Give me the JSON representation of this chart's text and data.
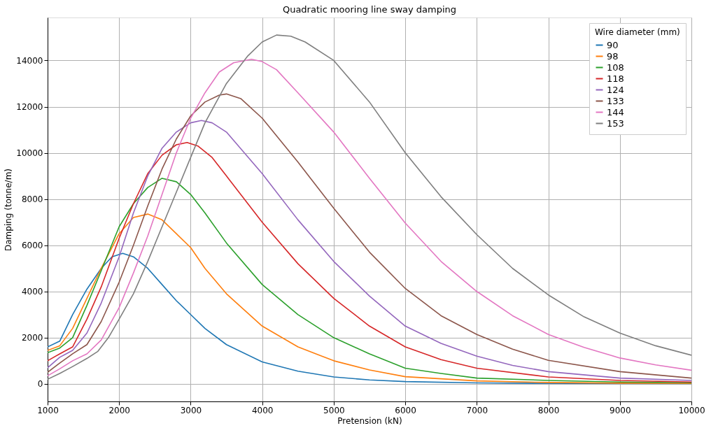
{
  "chart_data": {
    "type": "line",
    "title": "Quadratic mooring line sway damping",
    "xlabel": "Pretension (kN)",
    "ylabel": "Damping (tonne/m)",
    "legend_title": "Wire diameter (mm)",
    "legend": "top right",
    "grid": true,
    "marker": "none",
    "line_style": "solid",
    "xlim": [
      1000,
      10000
    ],
    "xticks": [
      1000,
      2000,
      3000,
      4000,
      5000,
      6000,
      7000,
      8000,
      9000,
      10000
    ],
    "ylim": [
      -760,
      15860
    ],
    "yticks": [
      0,
      2000,
      4000,
      6000,
      8000,
      10000,
      12000,
      14000
    ],
    "series": [
      {
        "name": "90",
        "color": "#1f77b4",
        "x": [
          1000,
          1170,
          1350,
          1550,
          1750,
          1900,
          2050,
          2200,
          2400,
          2600,
          2800,
          3000,
          3200,
          3500,
          4000,
          4500,
          5000,
          5500,
          6000,
          7000,
          8000,
          10000
        ],
        "values": [
          1600,
          1850,
          3000,
          4100,
          5000,
          5500,
          5650,
          5500,
          5000,
          4300,
          3600,
          3000,
          2400,
          1700,
          950,
          550,
          300,
          170,
          100,
          40,
          20,
          10
        ]
      },
      {
        "name": "98",
        "color": "#ff7f0e",
        "x": [
          1000,
          1170,
          1350,
          1550,
          1750,
          2000,
          2200,
          2400,
          2600,
          2800,
          3000,
          3200,
          3500,
          4000,
          4500,
          5000,
          5500,
          6000,
          7000,
          8000,
          9000,
          10000
        ],
        "values": [
          1450,
          1650,
          2400,
          3700,
          5000,
          6500,
          7200,
          7350,
          7100,
          6500,
          5900,
          5000,
          3900,
          2500,
          1600,
          1000,
          600,
          310,
          130,
          60,
          30,
          20
        ]
      },
      {
        "name": "108",
        "color": "#2ca02c",
        "x": [
          1000,
          1170,
          1350,
          1550,
          1750,
          2000,
          2200,
          2400,
          2600,
          2800,
          3000,
          3200,
          3500,
          4000,
          4500,
          5000,
          5500,
          6000,
          6500,
          7000,
          8000,
          9000,
          10000
        ],
        "values": [
          1350,
          1550,
          2000,
          3400,
          4900,
          6800,
          7800,
          8500,
          8900,
          8750,
          8200,
          7400,
          6100,
          4300,
          3000,
          2000,
          1300,
          680,
          450,
          250,
          150,
          80,
          50
        ]
      },
      {
        "name": "118",
        "color": "#d62728",
        "x": [
          1000,
          1170,
          1350,
          1550,
          1750,
          2000,
          2200,
          2400,
          2600,
          2800,
          2950,
          3100,
          3300,
          3500,
          4000,
          4500,
          5000,
          5500,
          6000,
          6500,
          7000,
          8000,
          9000,
          10000
        ],
        "values": [
          1000,
          1300,
          1600,
          2800,
          4200,
          6300,
          7800,
          9100,
          9900,
          10350,
          10450,
          10300,
          9800,
          9000,
          7000,
          5200,
          3700,
          2500,
          1600,
          1050,
          680,
          300,
          150,
          80
        ]
      },
      {
        "name": "124",
        "color": "#9467bd",
        "x": [
          1000,
          1170,
          1350,
          1550,
          1750,
          2000,
          2200,
          2400,
          2600,
          2800,
          3000,
          3150,
          3300,
          3500,
          4000,
          4500,
          5000,
          5500,
          6000,
          6500,
          7000,
          7500,
          8000,
          9000,
          10000
        ],
        "values": [
          700,
          1150,
          1450,
          2200,
          3500,
          5500,
          7400,
          9000,
          10200,
          10900,
          11300,
          11400,
          11300,
          10900,
          9100,
          7100,
          5300,
          3800,
          2500,
          1750,
          1200,
          800,
          530,
          250,
          150
        ]
      },
      {
        "name": "133",
        "color": "#8c564b",
        "x": [
          1000,
          1170,
          1350,
          1550,
          1750,
          2000,
          2200,
          2400,
          2600,
          2800,
          3000,
          3200,
          3400,
          3500,
          3700,
          4000,
          4500,
          5000,
          5500,
          6000,
          6500,
          7000,
          7500,
          8000,
          9000,
          10000
        ],
        "values": [
          500,
          900,
          1300,
          1700,
          2700,
          4400,
          6000,
          7700,
          9300,
          10600,
          11600,
          12200,
          12500,
          12550,
          12350,
          11500,
          9600,
          7600,
          5700,
          4130,
          2950,
          2140,
          1500,
          1020,
          530,
          250
        ]
      },
      {
        "name": "144",
        "color": "#e377c2",
        "x": [
          1000,
          1170,
          1350,
          1550,
          1750,
          2000,
          2200,
          2400,
          2600,
          2800,
          3000,
          3200,
          3400,
          3600,
          3850,
          4000,
          4200,
          4500,
          5000,
          5500,
          6000,
          6500,
          7000,
          7500,
          8000,
          8500,
          9000,
          9500,
          10000
        ],
        "values": [
          350,
          650,
          1000,
          1300,
          1900,
          3300,
          4800,
          6400,
          8200,
          10000,
          11500,
          12600,
          13500,
          13900,
          14050,
          13950,
          13600,
          12600,
          10900,
          8900,
          6960,
          5300,
          4000,
          2950,
          2140,
          1580,
          1120,
          820,
          590
        ]
      },
      {
        "name": "153",
        "color": "#7f7f7f",
        "x": [
          1000,
          1170,
          1350,
          1550,
          1700,
          1850,
          2000,
          2200,
          2400,
          2600,
          2800,
          3000,
          3200,
          3500,
          3800,
          4000,
          4200,
          4400,
          4600,
          5000,
          5500,
          6000,
          6500,
          7000,
          7500,
          8000,
          8500,
          9000,
          9500,
          10000
        ],
        "values": [
          200,
          450,
          750,
          1100,
          1400,
          2000,
          2800,
          3900,
          5300,
          6800,
          8300,
          9800,
          11300,
          13000,
          14200,
          14800,
          15100,
          15050,
          14800,
          14000,
          12200,
          10000,
          8100,
          6460,
          5000,
          3850,
          2900,
          2200,
          1650,
          1240
        ]
      }
    ]
  }
}
